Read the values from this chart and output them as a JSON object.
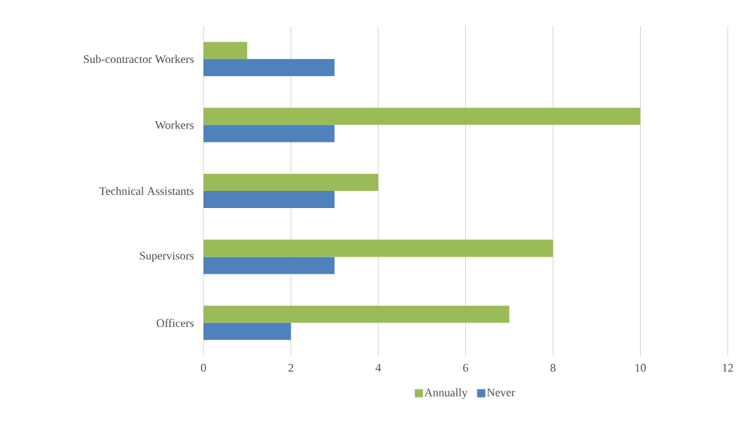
{
  "chart_data": {
    "type": "bar",
    "orientation": "horizontal",
    "categories": [
      "Sub-contractor Workers",
      "Workers",
      "Technical Assistants",
      "Supervisors",
      "Officers"
    ],
    "series": [
      {
        "name": "Annually",
        "color": "#9bbb59",
        "values": [
          1,
          10,
          4,
          8,
          7
        ]
      },
      {
        "name": "Never",
        "color": "#4f81bd",
        "values": [
          3,
          3,
          3,
          3,
          2
        ]
      }
    ],
    "xlim": [
      0,
      12
    ],
    "xticks": [
      0,
      2,
      4,
      6,
      8,
      10,
      12
    ],
    "grid": "x",
    "legend": "bottom"
  }
}
